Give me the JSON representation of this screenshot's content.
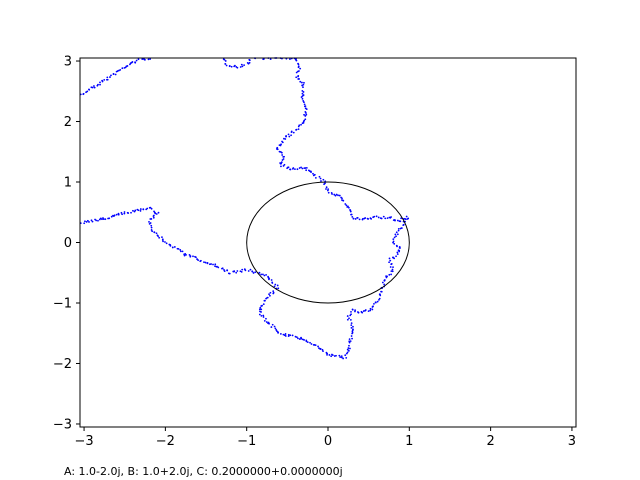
{
  "caption": "A: 1.0-2.0j, B: 1.0+2.0j, C: 0.2000000+0.0000000j",
  "chart_data": {
    "type": "scatter",
    "title": "",
    "xlabel": "",
    "ylabel": "",
    "xlim": [
      -3.05,
      3.05
    ],
    "ylim": [
      -3.05,
      3.05
    ],
    "xticks": [
      -3,
      -2,
      -1,
      0,
      1,
      2,
      3
    ],
    "yticks": [
      -3,
      -2,
      -1,
      0,
      1,
      2,
      3
    ],
    "xtick_labels": [
      "−3",
      "−2",
      "−1",
      "0",
      "1",
      "2",
      "3"
    ],
    "ytick_labels": [
      "−3",
      "−2",
      "−1",
      "0",
      "1",
      "2",
      "3"
    ],
    "grid": false,
    "aspect": "auto",
    "circle": {
      "center": [
        0,
        0
      ],
      "radius": 1,
      "color": "#000000"
    },
    "series": [
      {
        "color": "#0000ff",
        "marker": "dot",
        "points": [
          [
            -3.05,
            2.42
          ],
          [
            -2.95,
            2.52
          ],
          [
            -2.7,
            2.72
          ],
          [
            -2.5,
            2.9
          ],
          [
            -2.4,
            2.98
          ],
          [
            -2.3,
            3.02
          ],
          [
            -2.2,
            3.05
          ],
          [
            -1.3,
            3.05
          ],
          [
            -1.25,
            2.95
          ],
          [
            -1.1,
            2.9
          ],
          [
            -1.0,
            2.95
          ],
          [
            -0.95,
            3.05
          ],
          [
            -0.4,
            3.05
          ],
          [
            -0.35,
            2.92
          ],
          [
            -0.38,
            2.75
          ],
          [
            -0.3,
            2.6
          ],
          [
            -0.32,
            2.4
          ],
          [
            -0.27,
            2.2
          ],
          [
            -0.3,
            2.0
          ],
          [
            -0.4,
            1.85
          ],
          [
            -0.55,
            1.7
          ],
          [
            -0.62,
            1.55
          ],
          [
            -0.55,
            1.4
          ],
          [
            -0.6,
            1.3
          ],
          [
            -0.45,
            1.2
          ],
          [
            -0.3,
            1.25
          ],
          [
            -0.15,
            1.1
          ],
          [
            -0.05,
            1.0
          ],
          [
            0.0,
            0.85
          ],
          [
            0.15,
            0.75
          ],
          [
            0.27,
            0.55
          ],
          [
            0.3,
            0.4
          ],
          [
            0.45,
            0.38
          ],
          [
            0.6,
            0.42
          ],
          [
            0.78,
            0.4
          ],
          [
            0.85,
            0.35
          ],
          [
            0.98,
            0.42
          ],
          [
            0.92,
            0.3
          ],
          [
            0.85,
            0.15
          ],
          [
            0.8,
            0.0
          ],
          [
            0.9,
            -0.1
          ],
          [
            0.85,
            -0.2
          ],
          [
            0.75,
            -0.3
          ],
          [
            0.8,
            -0.45
          ],
          [
            0.7,
            -0.6
          ],
          [
            0.65,
            -0.85
          ],
          [
            0.55,
            -1.1
          ],
          [
            0.4,
            -1.15
          ],
          [
            0.3,
            -1.1
          ],
          [
            0.25,
            -1.25
          ],
          [
            0.32,
            -1.45
          ],
          [
            0.28,
            -1.6
          ],
          [
            0.25,
            -1.8
          ],
          [
            0.22,
            -1.9
          ],
          [
            0.05,
            -1.88
          ],
          [
            -0.05,
            -1.8
          ],
          [
            -0.15,
            -1.7
          ],
          [
            -0.3,
            -1.6
          ],
          [
            -0.45,
            -1.55
          ],
          [
            -0.6,
            -1.5
          ],
          [
            -0.75,
            -1.3
          ],
          [
            -0.85,
            -1.15
          ],
          [
            -0.8,
            -1.0
          ],
          [
            -0.7,
            -0.85
          ],
          [
            -0.62,
            -0.75
          ],
          [
            -0.75,
            -0.55
          ],
          [
            -1.0,
            -0.45
          ],
          [
            -1.2,
            -0.5
          ],
          [
            -1.35,
            -0.4
          ],
          [
            -1.55,
            -0.3
          ],
          [
            -1.75,
            -0.2
          ],
          [
            -2.0,
            0.0
          ],
          [
            -2.15,
            0.2
          ],
          [
            -2.2,
            0.35
          ],
          [
            -2.1,
            0.48
          ],
          [
            -2.2,
            0.58
          ],
          [
            -2.45,
            0.5
          ],
          [
            -2.6,
            0.45
          ],
          [
            -2.8,
            0.38
          ],
          [
            -3.05,
            0.33
          ]
        ]
      }
    ]
  }
}
